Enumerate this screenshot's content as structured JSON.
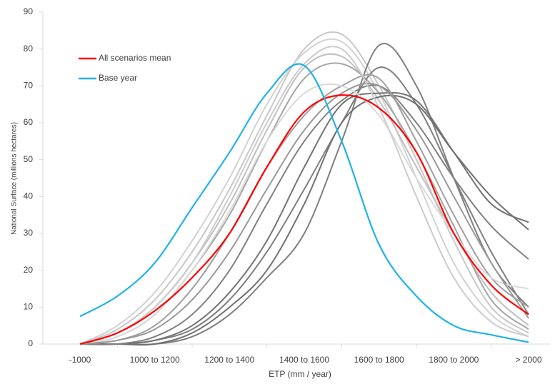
{
  "chart_data": {
    "type": "line",
    "x_label": "ETP (mm / year)",
    "y_label": "National Surface  (millions hectares)",
    "categories": [
      "-1000",
      null,
      "1000 to 1200",
      null,
      "1200 to 1400",
      null,
      "1400 to 1600",
      null,
      "1600 to 1800",
      null,
      "1800 to 2000",
      null,
      "> 2000"
    ],
    "ylim": [
      0,
      90
    ],
    "yticks": [
      0,
      10,
      20,
      30,
      40,
      50,
      60,
      70,
      80,
      90
    ],
    "legend": "upper-left",
    "series": [
      {
        "color": "#c8c8c8",
        "values": [
          0,
          4,
          12,
          25,
          42,
          62,
          80,
          84,
          70,
          50,
          28,
          10,
          3
        ]
      },
      {
        "color": "#d2d2d2",
        "values": [
          0,
          5,
          14,
          28,
          45,
          65,
          79,
          82,
          68,
          45,
          22,
          8,
          2
        ]
      },
      {
        "color": "#c0c0c0",
        "values": [
          0,
          3,
          10,
          22,
          38,
          58,
          75,
          78,
          66,
          48,
          30,
          14,
          5
        ]
      },
      {
        "color": "#a6a6a6",
        "values": [
          0,
          2,
          8,
          20,
          35,
          55,
          72,
          76,
          68,
          52,
          32,
          12,
          4
        ]
      },
      {
        "color": "#7f7f7f",
        "values": [
          0,
          0,
          0,
          2,
          8,
          18,
          30,
          55,
          81,
          70,
          45,
          22,
          10
        ]
      },
      {
        "color": "#7f7f7f",
        "values": [
          0,
          0,
          1,
          4,
          12,
          25,
          42,
          60,
          75,
          65,
          45,
          25,
          8
        ]
      },
      {
        "color": "#707070",
        "values": [
          0,
          0,
          0,
          3,
          10,
          20,
          38,
          60,
          67,
          65,
          52,
          40,
          31
        ]
      },
      {
        "color": "#737373",
        "values": [
          0,
          0,
          1,
          5,
          14,
          28,
          48,
          65,
          68,
          66,
          52,
          38,
          33
        ]
      },
      {
        "color": "#808080",
        "values": [
          0,
          0,
          2,
          8,
          20,
          38,
          55,
          66,
          70,
          60,
          45,
          32,
          23
        ]
      },
      {
        "color": "#a0a0a0",
        "values": [
          0,
          1,
          5,
          15,
          30,
          48,
          62,
          70,
          72,
          55,
          35,
          18,
          10
        ]
      },
      {
        "color": "#dadada",
        "values": [
          0,
          2,
          8,
          20,
          36,
          55,
          68,
          70,
          62,
          45,
          30,
          18,
          15
        ]
      },
      {
        "color": "#999999",
        "values": [
          0,
          1,
          4,
          12,
          25,
          42,
          58,
          68,
          70,
          58,
          40,
          22,
          7
        ]
      },
      {
        "color": "#cccccc",
        "values": [
          0,
          3,
          10,
          22,
          40,
          60,
          76,
          80,
          64,
          40,
          18,
          6,
          2
        ]
      },
      {
        "name": "All scenarios mean",
        "color": "#ff0000",
        "values": [
          0,
          3,
          9,
          18,
          30,
          48,
          63,
          67.5,
          64,
          52,
          30,
          16,
          8
        ]
      },
      {
        "name": "Base year",
        "color": "#1fb2e8",
        "values": [
          7.5,
          13,
          22,
          37,
          52,
          68,
          75.5,
          55,
          27,
          13,
          5,
          2.5,
          0.5
        ]
      }
    ]
  }
}
